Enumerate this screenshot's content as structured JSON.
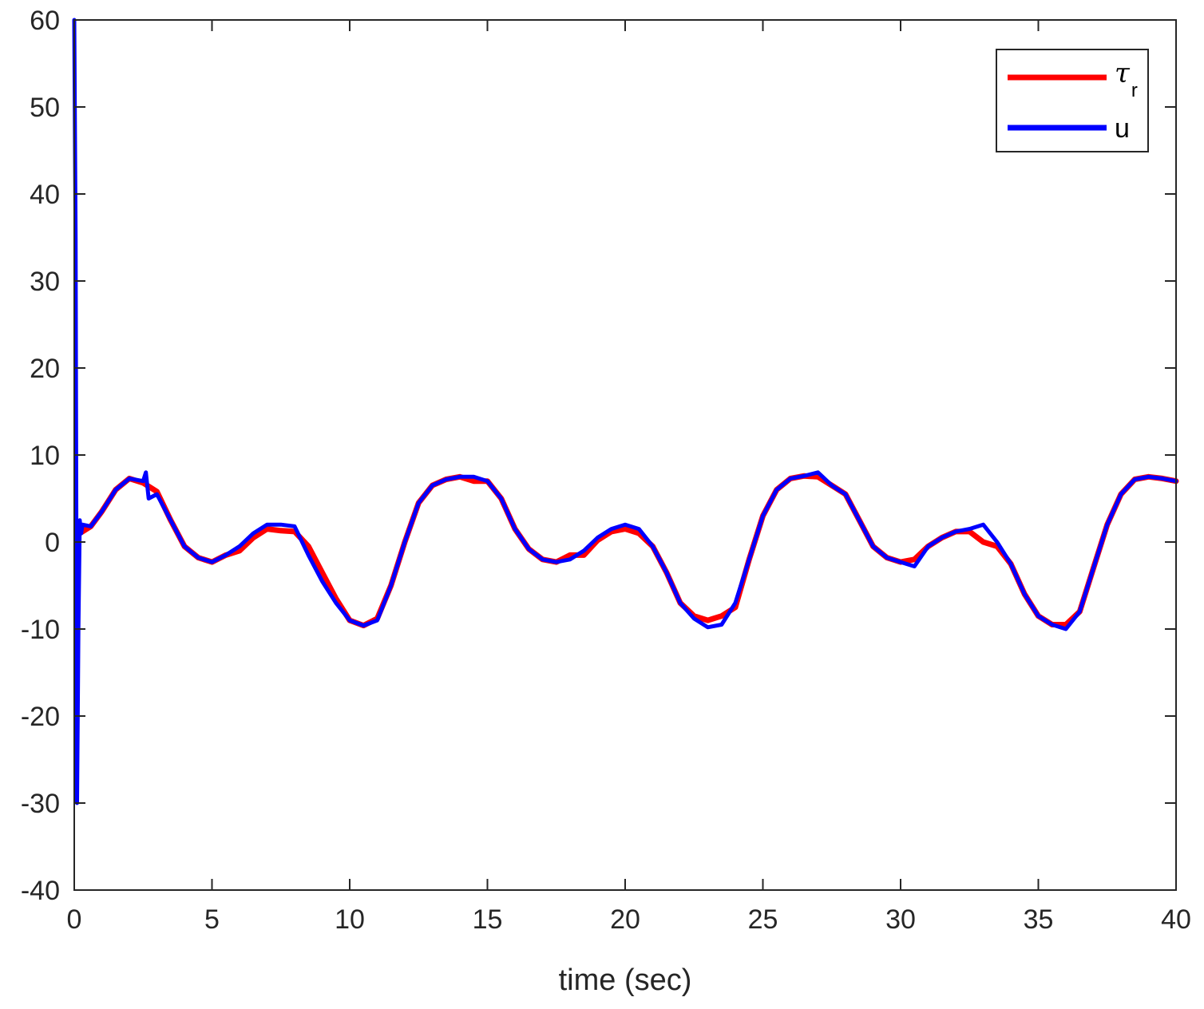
{
  "chart_data": {
    "type": "line",
    "xlabel": "time (sec)",
    "ylabel": "",
    "xlim": [
      0,
      40
    ],
    "ylim": [
      -40,
      60
    ],
    "xticks": [
      "0",
      "5",
      "10",
      "15",
      "20",
      "25",
      "30",
      "35",
      "40"
    ],
    "yticks": [
      "60",
      "50",
      "40",
      "30",
      "20",
      "10",
      "0",
      "-10",
      "-20",
      "-30",
      "-40"
    ],
    "grid": false,
    "legend_position": "top-right",
    "series": [
      {
        "name": "τ_r",
        "legend_symbol": "τ",
        "legend_subscript": "r",
        "color": "#ff0000",
        "x": [
          0.2,
          0.6,
          1.0,
          1.5,
          2.0,
          2.5,
          3.0,
          3.5,
          4.0,
          4.5,
          5.0,
          5.5,
          6.0,
          6.5,
          7.0,
          7.5,
          8.0,
          8.5,
          9.0,
          9.5,
          10.0,
          10.5,
          11.0,
          11.5,
          12.0,
          12.5,
          13.0,
          13.5,
          14.0,
          14.5,
          15.0,
          15.5,
          16.0,
          16.5,
          17.0,
          17.5,
          18.0,
          18.5,
          19.0,
          19.5,
          20.0,
          20.5,
          21.0,
          21.5,
          22.0,
          22.5,
          23.0,
          23.5,
          24.0,
          24.5,
          25.0,
          25.5,
          26.0,
          26.5,
          27.0,
          27.5,
          28.0,
          28.5,
          29.0,
          29.5,
          30.0,
          30.5,
          31.0,
          31.5,
          32.0,
          32.5,
          33.0,
          33.5,
          34.0,
          34.5,
          35.0,
          35.5,
          36.0,
          36.5,
          37.0,
          37.5,
          38.0,
          38.5,
          39.0,
          39.5,
          40.0
        ],
        "values": [
          1.0,
          1.8,
          3.5,
          6.0,
          7.3,
          6.8,
          5.8,
          2.5,
          -0.5,
          -1.8,
          -2.3,
          -1.5,
          -1.0,
          0.5,
          1.5,
          1.3,
          1.2,
          -0.5,
          -3.5,
          -6.5,
          -9.0,
          -9.6,
          -8.8,
          -5.0,
          0.0,
          4.5,
          6.5,
          7.2,
          7.5,
          7.0,
          7.0,
          5.0,
          1.5,
          -0.8,
          -2.0,
          -2.3,
          -1.5,
          -1.5,
          0.2,
          1.2,
          1.5,
          1.0,
          -0.5,
          -3.5,
          -7.0,
          -8.5,
          -9.0,
          -8.5,
          -7.5,
          -2.0,
          3.0,
          6.0,
          7.3,
          7.6,
          7.5,
          6.5,
          5.5,
          2.5,
          -0.5,
          -1.8,
          -2.3,
          -2.0,
          -0.5,
          0.5,
          1.2,
          1.2,
          0.0,
          -0.5,
          -2.5,
          -6.0,
          -8.5,
          -9.5,
          -9.5,
          -8.0,
          -3.0,
          2.0,
          5.5,
          7.2,
          7.5,
          7.3,
          7.0
        ]
      },
      {
        "name": "u",
        "color": "#0000ff",
        "x": [
          0.0,
          0.05,
          0.1,
          0.15,
          0.2,
          0.25,
          0.3,
          0.6,
          1.0,
          1.5,
          2.0,
          2.5,
          2.6,
          2.7,
          3.0,
          3.5,
          4.0,
          4.5,
          5.0,
          5.5,
          6.0,
          6.5,
          7.0,
          7.5,
          8.0,
          8.5,
          9.0,
          9.5,
          10.0,
          10.5,
          11.0,
          11.5,
          12.0,
          12.5,
          13.0,
          13.5,
          14.0,
          14.5,
          15.0,
          15.5,
          16.0,
          16.5,
          17.0,
          17.5,
          18.0,
          18.5,
          19.0,
          19.5,
          20.0,
          20.5,
          21.0,
          21.5,
          22.0,
          22.5,
          23.0,
          23.5,
          24.0,
          24.5,
          25.0,
          25.5,
          26.0,
          26.5,
          27.0,
          27.5,
          28.0,
          28.5,
          29.0,
          29.5,
          30.0,
          30.5,
          31.0,
          31.5,
          32.0,
          32.5,
          33.0,
          33.5,
          34.0,
          34.5,
          35.0,
          35.5,
          36.0,
          36.5,
          37.0,
          37.5,
          38.0,
          38.5,
          39.0,
          39.5,
          40.0
        ],
        "values": [
          60.0,
          35.0,
          -30.0,
          -10.0,
          2.5,
          1.0,
          2.0,
          1.8,
          3.5,
          6.0,
          7.3,
          7.0,
          8.0,
          5.0,
          5.5,
          2.5,
          -0.5,
          -1.8,
          -2.3,
          -1.5,
          -0.5,
          1.0,
          2.0,
          2.0,
          1.8,
          -1.5,
          -4.5,
          -7.0,
          -9.0,
          -9.6,
          -9.0,
          -5.0,
          0.0,
          4.5,
          6.5,
          7.2,
          7.5,
          7.5,
          7.0,
          5.0,
          1.5,
          -0.8,
          -2.0,
          -2.3,
          -2.0,
          -1.0,
          0.5,
          1.5,
          2.0,
          1.5,
          -0.5,
          -3.5,
          -7.0,
          -8.8,
          -9.8,
          -9.5,
          -7.0,
          -2.0,
          3.0,
          6.0,
          7.3,
          7.6,
          8.0,
          6.5,
          5.5,
          2.5,
          -0.5,
          -1.8,
          -2.3,
          -2.8,
          -0.5,
          0.5,
          1.2,
          1.5,
          2.0,
          0.0,
          -2.5,
          -6.0,
          -8.5,
          -9.5,
          -10.0,
          -8.0,
          -3.0,
          2.0,
          5.5,
          7.2,
          7.5,
          7.3,
          7.0
        ]
      }
    ]
  }
}
